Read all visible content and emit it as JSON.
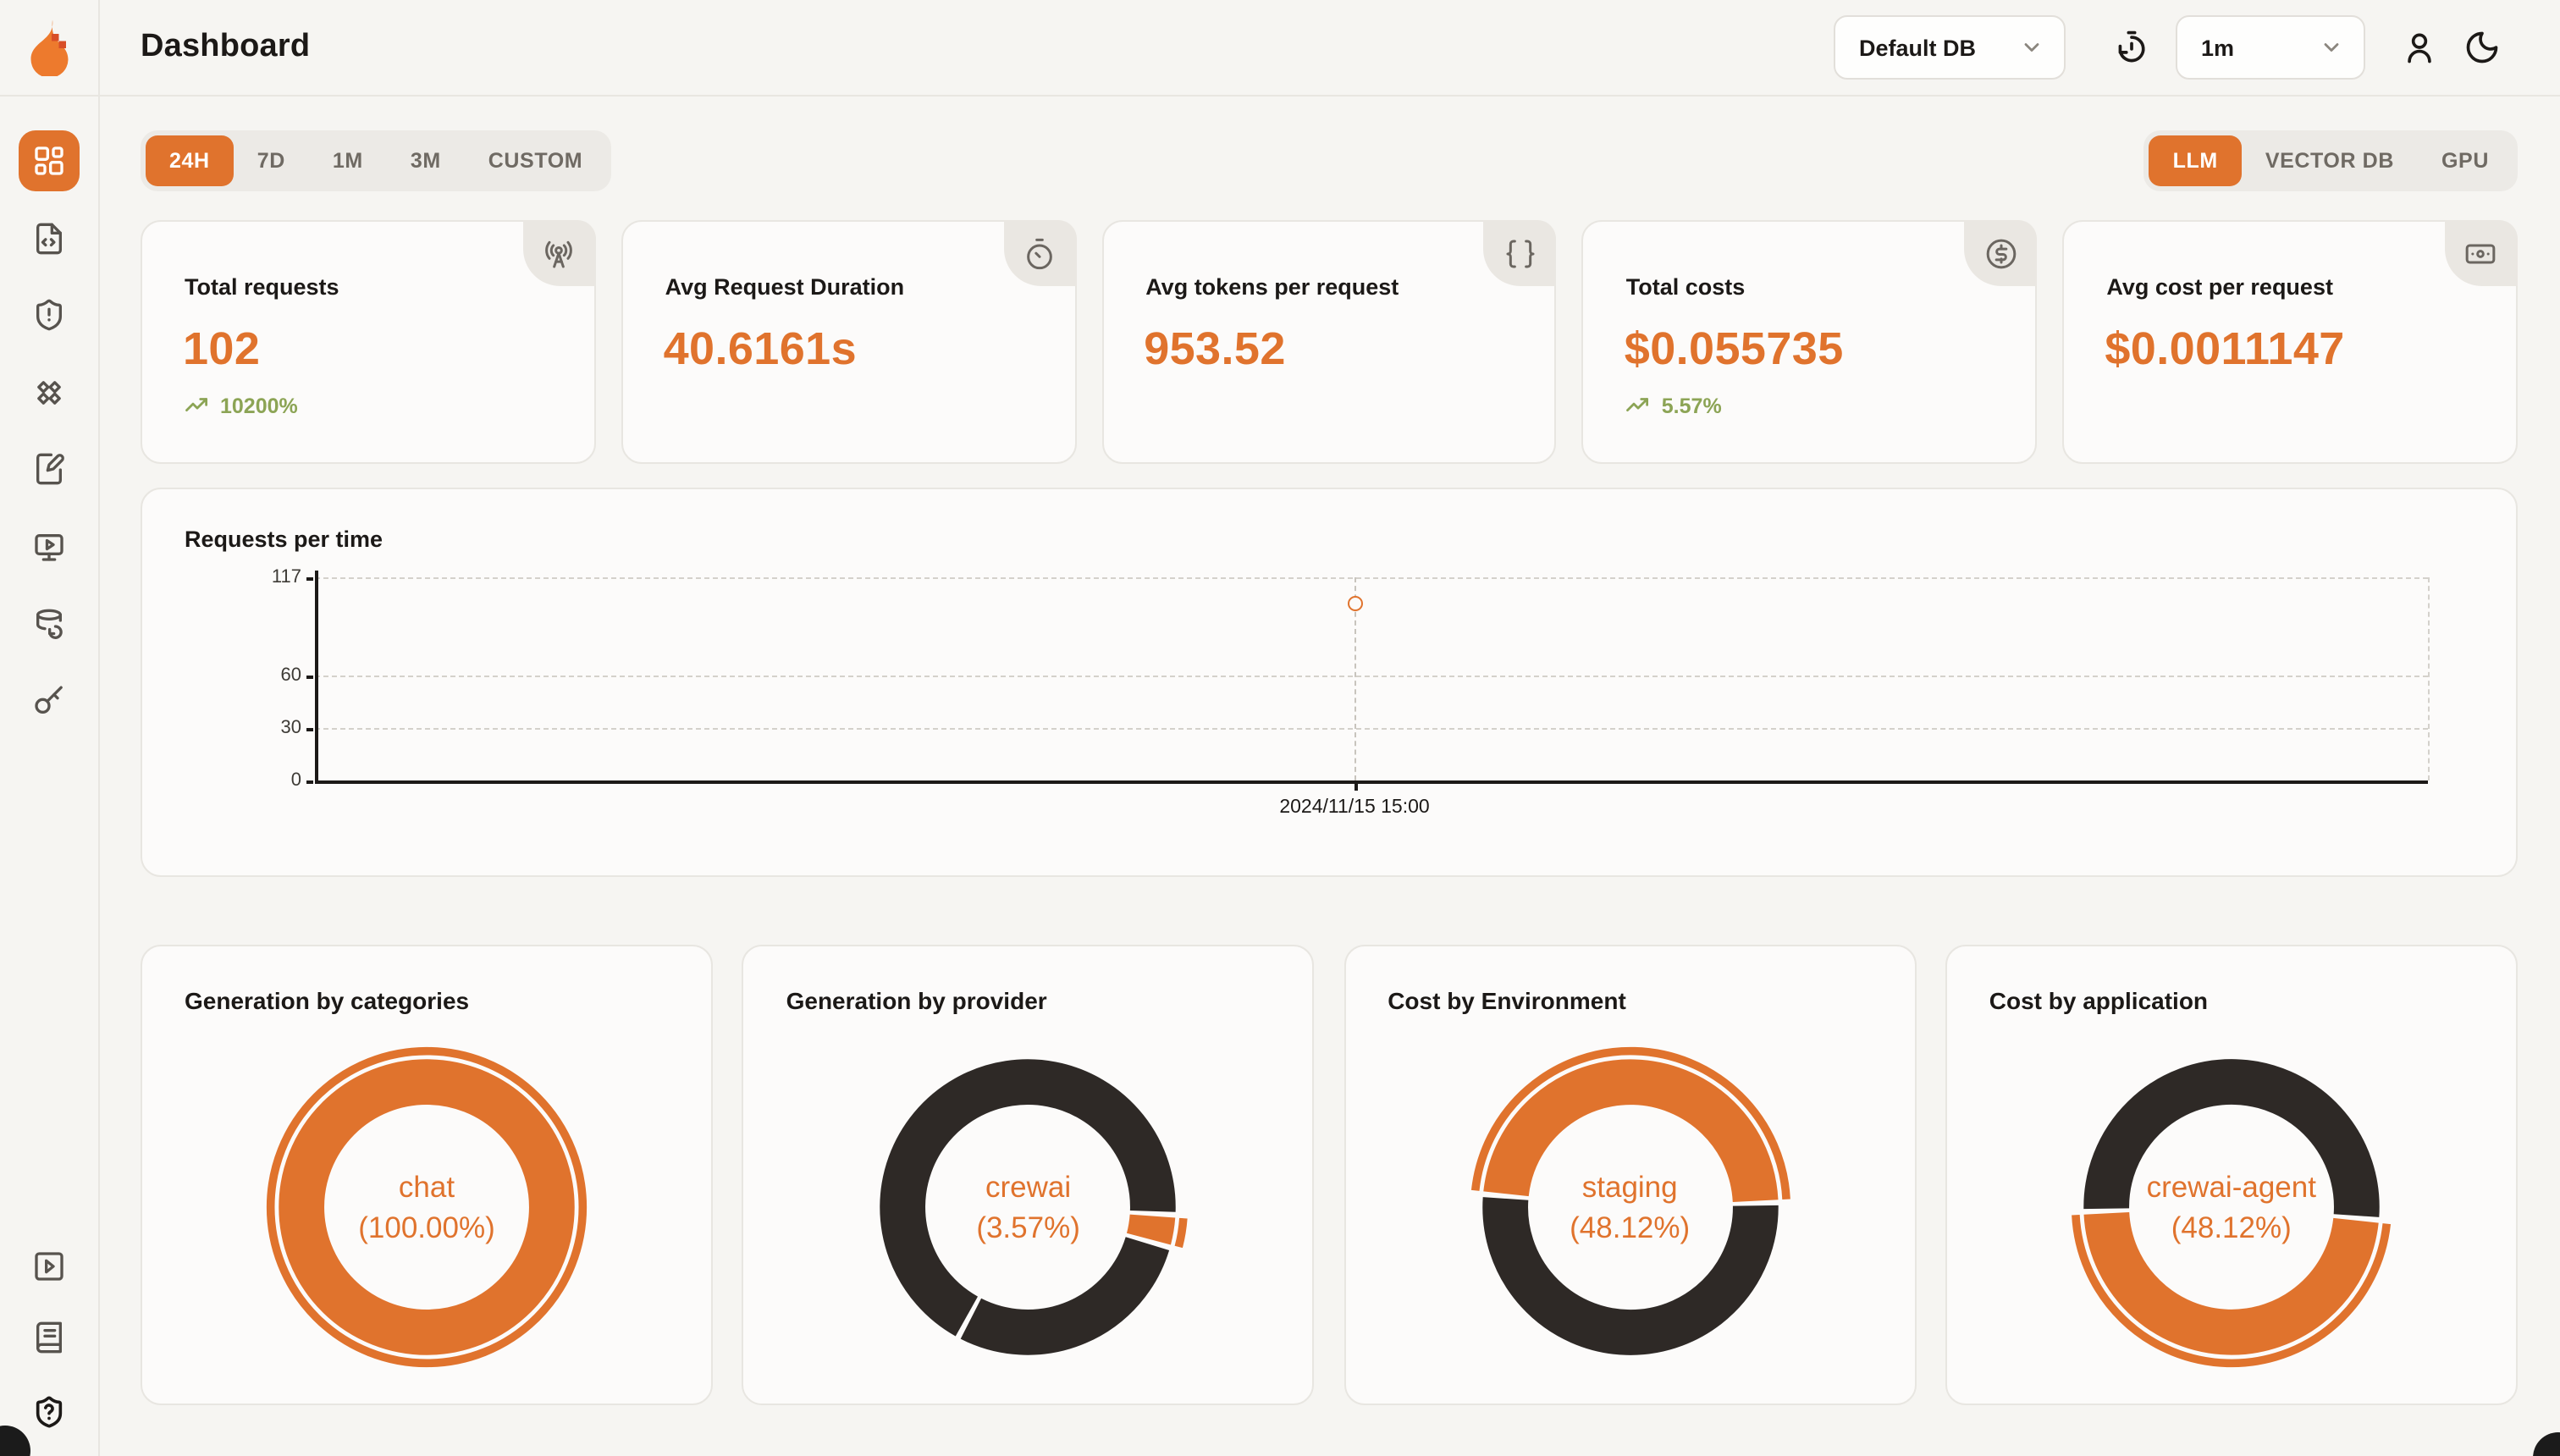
{
  "header": {
    "title": "Dashboard",
    "db_select": {
      "value": "Default DB"
    },
    "interval_select": {
      "value": "1m"
    }
  },
  "filters": {
    "time_ranges": [
      "24H",
      "7D",
      "1M",
      "3M",
      "CUSTOM"
    ],
    "active_time_range": "24H",
    "resource_tabs": [
      "LLM",
      "VECTOR DB",
      "GPU"
    ],
    "active_resource_tab": "LLM"
  },
  "stats": [
    {
      "label": "Total requests",
      "value": "102",
      "trend": "10200%",
      "icon": "radio-tower-icon"
    },
    {
      "label": "Avg Request Duration",
      "value": "40.6161s",
      "icon": "timer-icon"
    },
    {
      "label": "Avg tokens per request",
      "value": "953.52",
      "icon": "braces-icon"
    },
    {
      "label": "Total costs",
      "value": "$0.055735",
      "trend": "5.57%",
      "icon": "circle-dollar-icon"
    },
    {
      "label": "Avg cost per request",
      "value": "$0.0011147",
      "icon": "banknote-icon"
    }
  ],
  "chart_data": [
    {
      "type": "line",
      "title": "Requests per time",
      "x": [
        "2024/11/15 15:00"
      ],
      "series": [
        {
          "name": "requests",
          "values": [
            102
          ]
        }
      ],
      "ylim": [
        0,
        117
      ],
      "yticks": [
        0,
        30,
        60,
        117
      ],
      "grid": "dashed-horizontal",
      "point_style": "hollow-orange-circle",
      "point_x_fraction": 0.492
    },
    {
      "type": "pie",
      "title": "Generation by categories",
      "center_label": {
        "line1": "chat",
        "line2": "(100.00%)"
      },
      "start_deg": 0,
      "segments": [
        {
          "name": "chat",
          "pct": 100,
          "color": "#E0732D",
          "highlight": true
        }
      ]
    },
    {
      "type": "pie",
      "title": "Generation by provider",
      "center_label": {
        "line1": "crewai",
        "line2": "(3.57%)"
      },
      "start_deg": 93,
      "segments": [
        {
          "name": "crewai",
          "pct": 3.57,
          "color": "#E0732D",
          "highlight": true
        },
        {
          "name": "other",
          "pct": 28.4,
          "color": "#2E2926"
        },
        {
          "name": "other",
          "pct": 68.03,
          "color": "#2E2926"
        }
      ]
    },
    {
      "type": "pie",
      "title": "Cost by Environment",
      "center_label": {
        "line1": "staging",
        "line2": "(48.12%)"
      },
      "start_deg": 275,
      "segments": [
        {
          "name": "staging",
          "pct": 48.12,
          "color": "#E0732D",
          "highlight": true
        },
        {
          "name": "other",
          "pct": 51.88,
          "color": "#2E2926"
        }
      ]
    },
    {
      "type": "pie",
      "title": "Cost by application",
      "center_label": {
        "line1": "crewai-agent",
        "line2": "(48.12%)"
      },
      "start_deg": 95,
      "segments": [
        {
          "name": "crewai-agent",
          "pct": 48.12,
          "color": "#E0732D",
          "highlight": true
        },
        {
          "name": "other",
          "pct": 51.88,
          "color": "#2E2926"
        }
      ]
    }
  ],
  "colors": {
    "accent": "#E0732D",
    "dark_segment": "#2E2926",
    "positive": "#8CA455",
    "card_bg": "#FCFBFA"
  }
}
